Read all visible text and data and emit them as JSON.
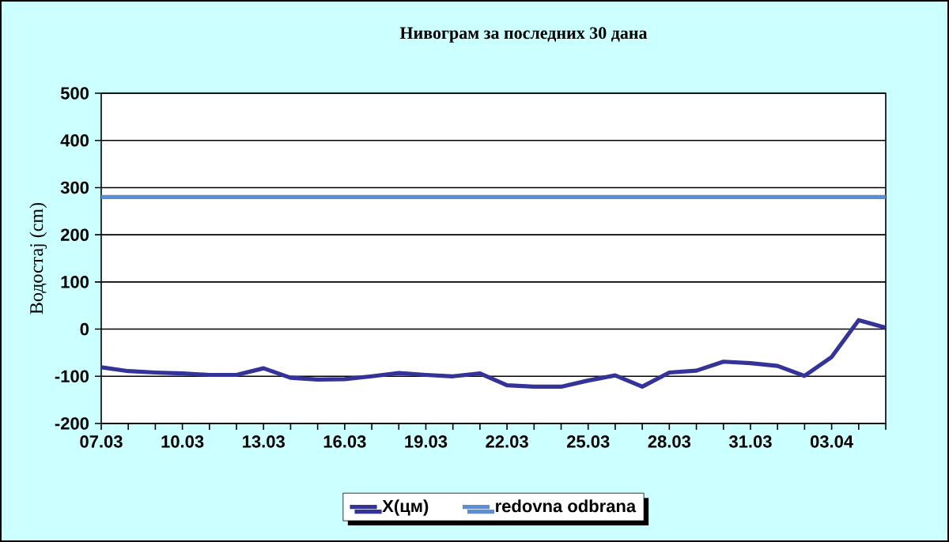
{
  "chart_data": {
    "type": "line",
    "title": "Нивограм за последних 30 дана",
    "ylabel": "Водостај (cm)",
    "categories": [
      "07.03",
      null,
      null,
      "10.03",
      null,
      null,
      "13.03",
      null,
      null,
      "16.03",
      null,
      null,
      "19.03",
      null,
      null,
      "22.03",
      null,
      null,
      "25.03",
      null,
      null,
      "28.03",
      null,
      null,
      "31.03",
      null,
      null,
      "03.04",
      null,
      null
    ],
    "series": [
      {
        "name": "X(цм)",
        "color": "#333399",
        "values": [
          -81,
          -89,
          -92,
          -94,
          -97,
          -97,
          -83,
          -103,
          -107,
          -106,
          -100,
          -93,
          -97,
          -100,
          -94,
          -119,
          -122,
          -122,
          -109,
          -98,
          -122,
          -92,
          -88,
          -69,
          -72,
          -78,
          -99,
          -59,
          19,
          3
        ]
      },
      {
        "name": "redovna odbrana",
        "color": "#5b8ed6",
        "values": [
          280,
          280,
          280,
          280,
          280,
          280,
          280,
          280,
          280,
          280,
          280,
          280,
          280,
          280,
          280,
          280,
          280,
          280,
          280,
          280,
          280,
          280,
          280,
          280,
          280,
          280,
          280,
          280,
          280,
          280
        ]
      }
    ],
    "ylim": [
      -200,
      500
    ],
    "yticks": [
      -200,
      -100,
      0,
      100,
      200,
      300,
      400,
      500
    ],
    "grid": "y",
    "legend": "bottom",
    "marker": "none",
    "line_style": "solid"
  }
}
